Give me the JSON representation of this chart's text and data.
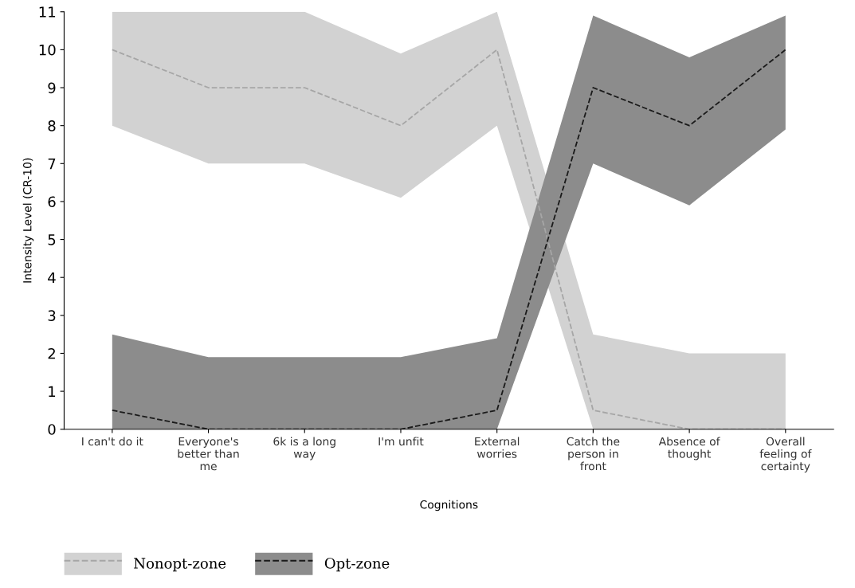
{
  "chart_data": {
    "type": "line",
    "xlabel": "Cognitions",
    "ylabel": "Intensity Level (CR-10)",
    "categories": [
      "I can't do it",
      "Everyone's\nbetter than\nme",
      "6k is a long\nway",
      "I'm unfit",
      "External\nworries",
      "Catch the\nperson in\nfront",
      "Absence of\nthought",
      "Overall\nfeeling of\ncertainty"
    ],
    "series": [
      {
        "name": "Nonopt-zone",
        "color": "#a6a6a6",
        "values": [
          10,
          9,
          9,
          8,
          10,
          0.5,
          0,
          0
        ],
        "lower": [
          8,
          7,
          7,
          6.1,
          8,
          0,
          0,
          0
        ],
        "upper": [
          11,
          11,
          11,
          9.9,
          11,
          2.5,
          2,
          2
        ]
      },
      {
        "name": "Opt-zone",
        "color": "#1a1a1a",
        "values": [
          0.5,
          0,
          0,
          0,
          0.5,
          9,
          8,
          10
        ],
        "lower": [
          0,
          0,
          0,
          0,
          0,
          7,
          5.9,
          7.9
        ],
        "upper": [
          2.5,
          1.9,
          1.9,
          1.9,
          2.4,
          10.9,
          9.8,
          10.9
        ]
      }
    ],
    "ylim": [
      0,
      11
    ],
    "yticks": [
      0,
      1,
      2,
      3,
      4,
      5,
      6,
      7,
      8,
      9,
      10,
      11
    ],
    "line_style": "dashed",
    "marker": "none",
    "grid": false,
    "legend": "bottom left"
  }
}
